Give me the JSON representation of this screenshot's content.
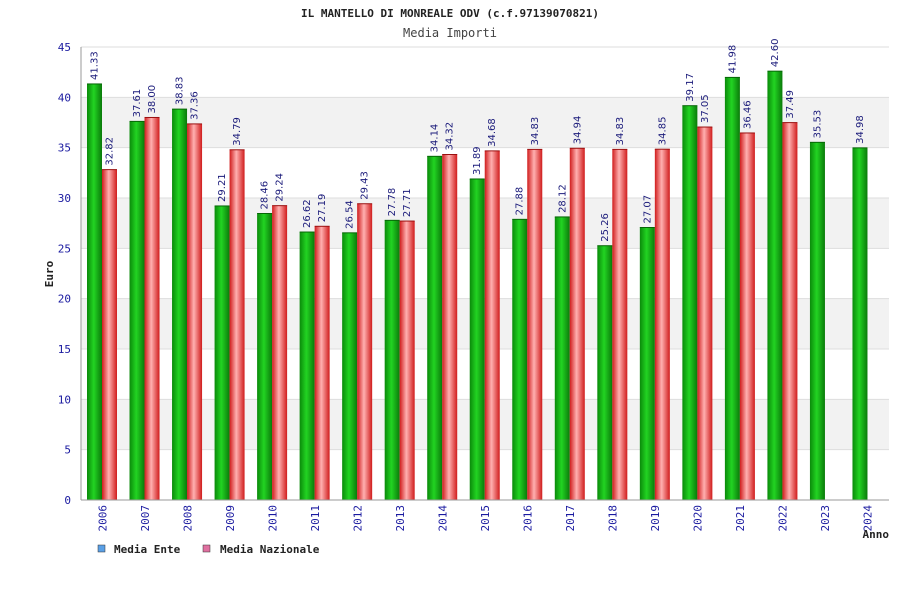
{
  "chart_data": {
    "type": "bar",
    "title": "IL MANTELLO DI MONREALE ODV (c.f.97139070821)",
    "subtitle": "Media Importi",
    "ylabel": "Euro",
    "xlabel": "Anno",
    "ylim": [
      0,
      45
    ],
    "yticks": [
      0,
      5,
      10,
      15,
      20,
      25,
      30,
      35,
      40,
      45
    ],
    "grid": true,
    "legend_position": "bottom-left",
    "categories": [
      "2006",
      "2007",
      "2008",
      "2009",
      "2010",
      "2011",
      "2012",
      "2013",
      "2014",
      "2015",
      "2016",
      "2017",
      "2018",
      "2019",
      "2020",
      "2021",
      "2022",
      "2023",
      "2024"
    ],
    "series": [
      {
        "name": "Media Ente",
        "legend_color": "#5aa0e6",
        "bar_color": "#1ab31a",
        "values": [
          41.33,
          37.61,
          38.83,
          29.21,
          28.46,
          26.62,
          26.54,
          27.78,
          34.14,
          31.89,
          27.88,
          28.12,
          25.26,
          27.07,
          39.17,
          41.98,
          42.6,
          35.53,
          34.98
        ],
        "labels": [
          "41.33",
          "37.61",
          "38.83",
          "29.21",
          "28.46",
          "26.62",
          "26.54",
          "27.78",
          "34.14",
          "31.89",
          "27.88",
          "28.12",
          "25.26",
          "27.07",
          "39.17",
          "41.98",
          "42.60",
          "35.53",
          "34.98"
        ]
      },
      {
        "name": "Media Nazionale",
        "legend_color": "#e070a0",
        "bar_color": "#e83a3a",
        "values": [
          32.82,
          38.0,
          37.36,
          34.79,
          29.24,
          27.19,
          29.43,
          27.71,
          34.32,
          34.68,
          34.83,
          34.94,
          34.83,
          34.85,
          37.05,
          36.46,
          37.49,
          null,
          null
        ],
        "labels": [
          "32.82",
          "38.00",
          "37.36",
          "34.79",
          "29.24",
          "27.19",
          "29.43",
          "27.71",
          "34.32",
          "34.68",
          "34.83",
          "34.94",
          "34.83",
          "34.85",
          "37.05",
          "36.46",
          "37.49",
          null,
          null
        ]
      }
    ]
  }
}
